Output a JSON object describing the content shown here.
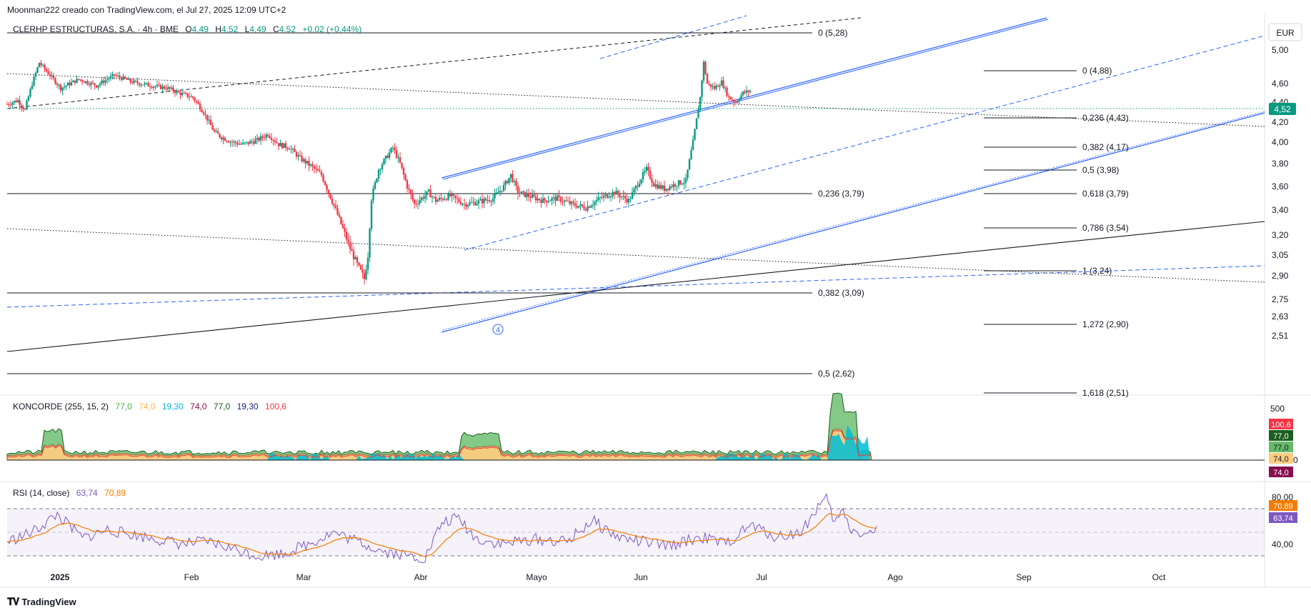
{
  "header": {
    "credit": "Moonman222 creado con TradingView.com, el Jul 27, 2025 12:09 UTC+2"
  },
  "legend": {
    "symbol": "CLERHP ESTRUCTURAS, S.A. · 4h · BME",
    "o_label": "O",
    "o": "4,49",
    "h_label": "H",
    "h": "4,52",
    "l_label": "L",
    "l": "4,49",
    "c_label": "C",
    "c": "4,52",
    "change": "+0,02 (+0,44%)"
  },
  "currency": "EUR",
  "footer": {
    "brand": "TradingView",
    "logo": "tradingview-logo-icon"
  },
  "colors": {
    "up": "#089981",
    "down": "#f23645",
    "trendline": "#2962ff",
    "fib": "#131722",
    "rsi": "#7e57c2",
    "rsi_ma": "#f57c00"
  },
  "chart_data": [
    {
      "type": "candlestick",
      "interval": "4h",
      "x_labels": [
        "2025",
        "Feb",
        "Mar",
        "Abr",
        "Mayo",
        "Jun",
        "Jul",
        "Ago",
        "Sep",
        "Oct"
      ],
      "y_ticks": [
        "5,00",
        "4,60",
        "4,40",
        "4,20",
        "4,00",
        "3,80",
        "3,60",
        "3,40",
        "3,20",
        "3,05",
        "2,90",
        "2,75",
        "2,63",
        "2,51"
      ],
      "last_price": "4,52",
      "price_path": [
        [
          0,
          4.38
        ],
        [
          3,
          4.42
        ],
        [
          5,
          4.32
        ],
        [
          7,
          4.6
        ],
        [
          9,
          4.85
        ],
        [
          12,
          4.7
        ],
        [
          15,
          4.55
        ],
        [
          20,
          4.65
        ],
        [
          25,
          4.58
        ],
        [
          30,
          4.7
        ],
        [
          35,
          4.62
        ],
        [
          40,
          4.58
        ],
        [
          45,
          4.55
        ],
        [
          48,
          4.5
        ],
        [
          52,
          4.45
        ],
        [
          55,
          4.3
        ],
        [
          58,
          4.1
        ],
        [
          60,
          4.05
        ],
        [
          63,
          4.0
        ],
        [
          66,
          3.98
        ],
        [
          70,
          4.02
        ],
        [
          73,
          4.08
        ],
        [
          76,
          3.98
        ],
        [
          79,
          3.95
        ],
        [
          82,
          3.85
        ],
        [
          85,
          3.78
        ],
        [
          88,
          3.7
        ],
        [
          90,
          3.55
        ],
        [
          92,
          3.4
        ],
        [
          94,
          3.25
        ],
        [
          96,
          3.1
        ],
        [
          98,
          2.98
        ],
        [
          100,
          2.88
        ],
        [
          101,
          3.05
        ],
        [
          102,
          3.5
        ],
        [
          104,
          3.75
        ],
        [
          106,
          3.85
        ],
        [
          108,
          3.95
        ],
        [
          110,
          3.8
        ],
        [
          112,
          3.6
        ],
        [
          114,
          3.45
        ],
        [
          116,
          3.5
        ],
        [
          118,
          3.55
        ],
        [
          120,
          3.48
        ],
        [
          124,
          3.52
        ],
        [
          128,
          3.45
        ],
        [
          132,
          3.47
        ],
        [
          136,
          3.5
        ],
        [
          139,
          3.6
        ],
        [
          141,
          3.7
        ],
        [
          143,
          3.55
        ],
        [
          146,
          3.52
        ],
        [
          150,
          3.48
        ],
        [
          154,
          3.5
        ],
        [
          158,
          3.45
        ],
        [
          162,
          3.42
        ],
        [
          166,
          3.5
        ],
        [
          170,
          3.55
        ],
        [
          174,
          3.48
        ],
        [
          177,
          3.65
        ],
        [
          179,
          3.75
        ],
        [
          181,
          3.62
        ],
        [
          184,
          3.58
        ],
        [
          187,
          3.62
        ],
        [
          190,
          3.65
        ],
        [
          192,
          4.0
        ],
        [
          194,
          4.45
        ],
        [
          195,
          4.85
        ],
        [
          196,
          4.6
        ],
        [
          198,
          4.55
        ],
        [
          200,
          4.62
        ],
        [
          202,
          4.45
        ],
        [
          204,
          4.4
        ],
        [
          206,
          4.5
        ],
        [
          208,
          4.52
        ]
      ],
      "fib_levels": [
        {
          "text": "0 (5,28)",
          "price": 5.28
        },
        {
          "text": "0,236 (3,79)",
          "price": 3.79
        },
        {
          "text": "0,382 (3,09)",
          "price": 3.09
        },
        {
          "text": "0,5 (2,62)",
          "price": 2.62
        },
        {
          "text": "0 (4,88)",
          "price": 4.88
        },
        {
          "text": "0,236 (4,43)",
          "price": 4.43
        },
        {
          "text": "0,382 (4,17)",
          "price": 4.17
        },
        {
          "text": "0,5 (3,98)",
          "price": 3.98
        },
        {
          "text": "0,618 (3,79)",
          "price": 3.79
        },
        {
          "text": "0,786 (3,54)",
          "price": 3.54
        },
        {
          "text": "1 (3,24)",
          "price": 3.24
        },
        {
          "text": "1,272 (2,90)",
          "price": 2.9
        },
        {
          "text": "1,618 (2,51)",
          "price": 2.51
        }
      ],
      "wave_label": "4"
    },
    {
      "type": "area",
      "title": "KONCORDE (255, 15, 2)",
      "values": [
        "77,0",
        "74,0",
        "19,30",
        "74,0",
        "77,0",
        "19,30",
        "100,6"
      ],
      "y_ticks": [
        "500",
        "0"
      ],
      "badges": [
        "100,6",
        "77,0",
        "77,0",
        "74,0",
        "74,0"
      ]
    },
    {
      "type": "line",
      "title": "RSI (14, close)",
      "values": [
        "63,74",
        "70,89"
      ],
      "y_ticks": [
        "80,00",
        "40,00"
      ],
      "badges": [
        "70,89",
        "63,74"
      ],
      "rsi_path": [
        [
          0,
          52
        ],
        [
          6,
          60
        ],
        [
          12,
          75
        ],
        [
          18,
          55
        ],
        [
          24,
          62
        ],
        [
          30,
          58
        ],
        [
          36,
          54
        ],
        [
          42,
          50
        ],
        [
          48,
          52
        ],
        [
          54,
          46
        ],
        [
          60,
          40
        ],
        [
          66,
          42
        ],
        [
          72,
          50
        ],
        [
          78,
          60
        ],
        [
          84,
          52
        ],
        [
          90,
          44
        ],
        [
          96,
          40
        ],
        [
          100,
          38
        ],
        [
          104,
          68
        ],
        [
          108,
          72
        ],
        [
          112,
          55
        ],
        [
          118,
          50
        ],
        [
          126,
          54
        ],
        [
          134,
          52
        ],
        [
          140,
          70
        ],
        [
          146,
          56
        ],
        [
          152,
          52
        ],
        [
          158,
          48
        ],
        [
          166,
          56
        ],
        [
          172,
          50
        ],
        [
          178,
          66
        ],
        [
          184,
          56
        ],
        [
          190,
          60
        ],
        [
          194,
          82
        ],
        [
          196,
          88
        ],
        [
          198,
          68
        ],
        [
          200,
          78
        ],
        [
          202,
          62
        ],
        [
          206,
          58
        ],
        [
          208,
          64
        ]
      ]
    }
  ]
}
